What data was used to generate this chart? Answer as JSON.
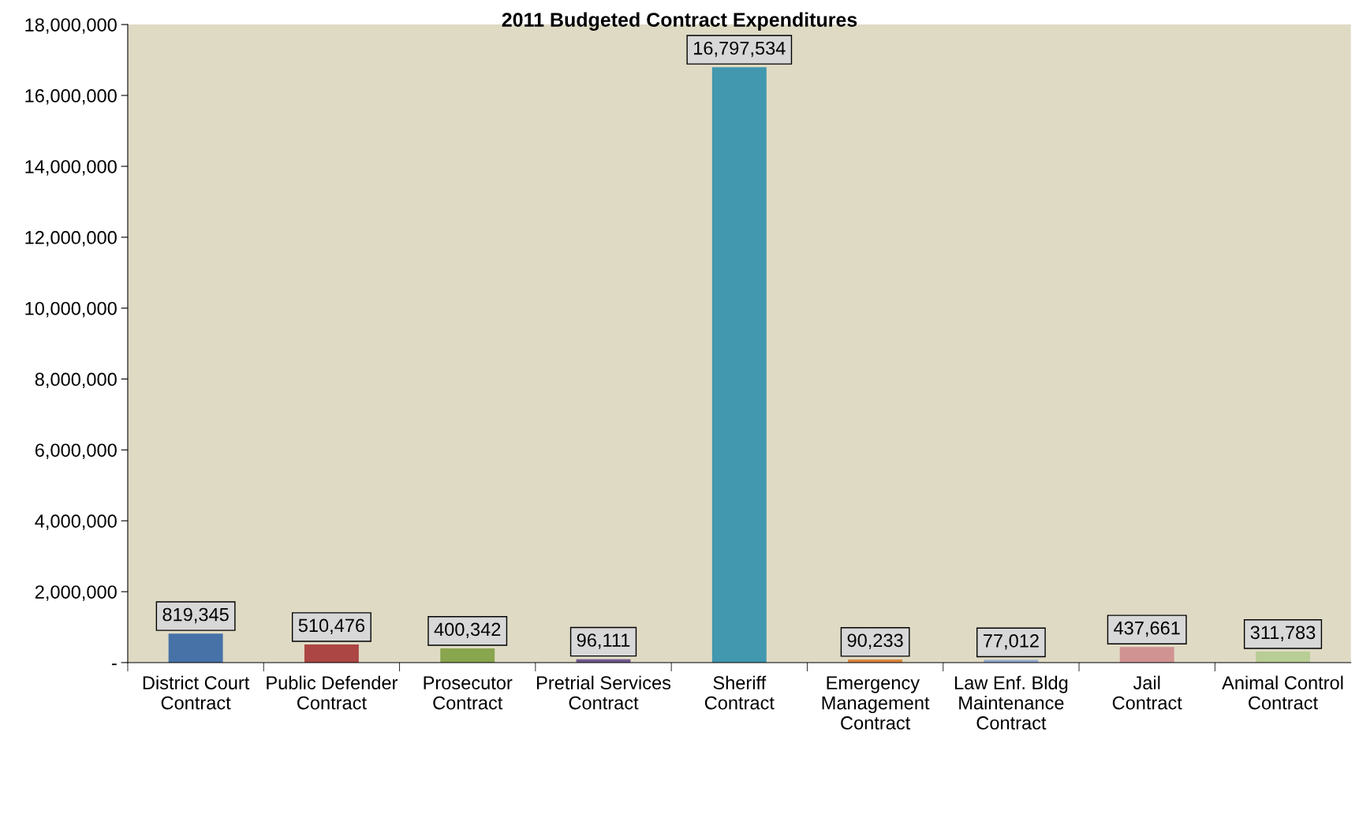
{
  "chart_data": {
    "type": "bar",
    "title": "2011 Budgeted Contract Expenditures",
    "categories": [
      "District Court Contract",
      "Public Defender Contract",
      "Prosecutor Contract",
      "Pretrial Services Contract",
      "Sheriff Contract",
      "Emergency Management Contract",
      "Law Enf. Bldg Maintenance Contract",
      "Jail Contract",
      "Animal Control Contract"
    ],
    "values": [
      819345,
      510476,
      400342,
      96111,
      16797534,
      90233,
      77012,
      437661,
      311783
    ],
    "colors": [
      "#4672a8",
      "#ab4644",
      "#89a54e",
      "#71588f",
      "#4198af",
      "#db843d",
      "#93a9cf",
      "#d19392",
      "#b9cd96"
    ],
    "ylim": [
      0,
      18000000
    ],
    "yticks": [
      {
        "value": 0,
        "label": "-"
      },
      {
        "value": 2000000,
        "label": "2,000,000"
      },
      {
        "value": 4000000,
        "label": "4,000,000"
      },
      {
        "value": 6000000,
        "label": "6,000,000"
      },
      {
        "value": 8000000,
        "label": "8,000,000"
      },
      {
        "value": 10000000,
        "label": "10,000,000"
      },
      {
        "value": 12000000,
        "label": "12,000,000"
      },
      {
        "value": 14000000,
        "label": "14,000,000"
      },
      {
        "value": 16000000,
        "label": "16,000,000"
      },
      {
        "value": 18000000,
        "label": "18,000,000"
      }
    ],
    "value_labels": [
      "819,345",
      "510,476",
      "400,342",
      "96,111",
      "16,797,534",
      "90,233",
      "77,012",
      "437,661",
      "311,783"
    ],
    "grid": false
  }
}
